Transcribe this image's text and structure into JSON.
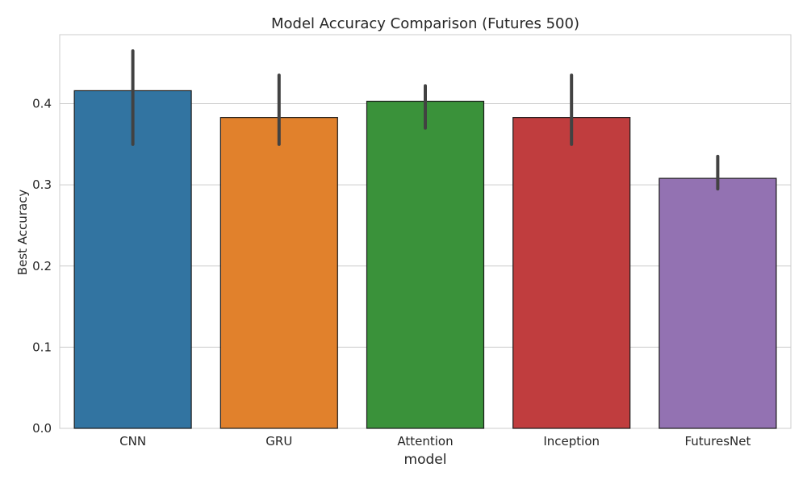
{
  "chart_data": {
    "type": "bar",
    "title": "Model Accuracy Comparison (Futures 500)",
    "xlabel": "model",
    "ylabel": "Best Accuracy",
    "categories": [
      "CNN",
      "GRU",
      "Attention",
      "Inception",
      "FuturesNet"
    ],
    "values": [
      0.416,
      0.383,
      0.403,
      0.383,
      0.308
    ],
    "error_bars": [
      {
        "low": 0.35,
        "high": 0.465
      },
      {
        "low": 0.35,
        "high": 0.435
      },
      {
        "low": 0.37,
        "high": 0.422
      },
      {
        "low": 0.35,
        "high": 0.435
      },
      {
        "low": 0.295,
        "high": 0.335
      }
    ],
    "colors": [
      "#3274a1",
      "#e1812c",
      "#3a923a",
      "#c03d3e",
      "#9372b2"
    ],
    "ylim": [
      0,
      0.485
    ],
    "yticks": [
      0.0,
      0.1,
      0.2,
      0.3,
      0.4
    ],
    "ytick_labels": [
      "0.0",
      "0.1",
      "0.2",
      "0.3",
      "0.4"
    ],
    "grid": true,
    "grid_axis": "y"
  }
}
